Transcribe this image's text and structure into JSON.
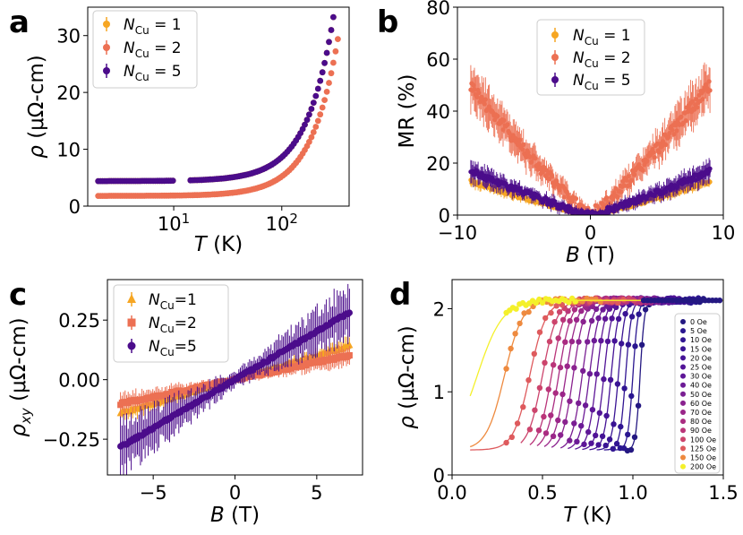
{
  "chart_data": [
    {
      "panel": "a",
      "type": "scatter",
      "xscale": "log",
      "xlim": [
        1.6,
        420
      ],
      "ylim": [
        0,
        35
      ],
      "xlabel": "T (K)",
      "ylabel": "ρ (μΩ-cm)",
      "xticks": [
        10,
        100
      ],
      "xtick_labels": [
        "10^1",
        "10^2"
      ],
      "yticks": [
        0,
        10,
        20,
        30
      ],
      "ytick_labels": [
        "0",
        "10",
        "20",
        "30"
      ],
      "legend": "upper-left",
      "series": [
        {
          "name": "N_Cu = 1",
          "color": "#f6a623",
          "residual": 4.4,
          "coef": 0.00133,
          "exp": 1.75,
          "tmax": 330
        },
        {
          "name": "N_Cu = 2",
          "color": "#ec7053",
          "residual": 1.8,
          "coef": 0.00108,
          "exp": 1.75,
          "tmax": 330
        },
        {
          "name": "N_Cu = 5",
          "color": "#4b0c8b",
          "residual": 4.4,
          "coef": 0.00133,
          "exp": 1.75,
          "tmax": 330
        }
      ]
    },
    {
      "panel": "b",
      "type": "scatter",
      "xlim": [
        -10,
        10
      ],
      "ylim": [
        0,
        80
      ],
      "xlabel": "B (T)",
      "ylabel": "MR (%)",
      "xticks": [
        -10,
        0,
        10
      ],
      "xtick_labels": [
        "−10",
        "0",
        "10"
      ],
      "yticks": [
        0,
        20,
        40,
        60,
        80
      ],
      "ytick_labels": [
        "0",
        "20",
        "40",
        "60",
        "80"
      ],
      "legend": "top-center",
      "series": [
        {
          "name": "N_Cu = 1",
          "color": "#f6a623",
          "mr_at_9T": 13,
          "err": 1.5
        },
        {
          "name": "N_Cu = 2",
          "color": "#ec7053",
          "mr_at_9T": 50,
          "err": 6
        },
        {
          "name": "N_Cu = 5",
          "color": "#4b0c8b",
          "mr_at_9T": 17,
          "err": 3
        }
      ]
    },
    {
      "panel": "c",
      "type": "scatter",
      "xlim": [
        -7.8,
        7.8
      ],
      "ylim": [
        -0.4,
        0.42
      ],
      "xlabel": "B (T)",
      "ylabel": "ρ_xy (μΩ-cm)",
      "xticks": [
        -5,
        0,
        5
      ],
      "xtick_labels": [
        "−5",
        "0",
        "5"
      ],
      "yticks": [
        -0.25,
        0,
        0.25
      ],
      "ytick_labels": [
        "−0.25",
        "0.00",
        "0.25"
      ],
      "legend": "upper-left",
      "series": [
        {
          "name": "N_Cu=1",
          "color": "#f6a623",
          "slope": 0.02,
          "err": 0.03,
          "marker": "triangle"
        },
        {
          "name": "N_Cu=2",
          "color": "#ec7053",
          "slope": 0.0145,
          "err": 0.035,
          "marker": "square"
        },
        {
          "name": "N_Cu=5",
          "color": "#4b0c8b",
          "slope": 0.0405,
          "err": 0.09,
          "marker": "circle"
        }
      ]
    },
    {
      "panel": "d",
      "type": "line",
      "xlim": [
        0,
        1.5
      ],
      "ylim": [
        0,
        2.35
      ],
      "xlabel": "T (K)",
      "ylabel": "ρ (μΩ-cm)",
      "xticks": [
        0,
        0.5,
        1.0,
        1.5
      ],
      "xtick_labels": [
        "0.0",
        "0.5",
        "1.0",
        "1.5"
      ],
      "yticks": [
        0,
        1,
        2
      ],
      "ytick_labels": [
        "0",
        "1",
        "2"
      ],
      "legend": "right",
      "normal_state": 2.1,
      "residual": 0.3,
      "series": [
        {
          "name": "0 Oe",
          "tc": 1.04,
          "width": 0.012,
          "color": "#241882"
        },
        {
          "name": "5 Oe",
          "tc": 1.0,
          "width": 0.014,
          "color": "#2a1690"
        },
        {
          "name": "10 Oe",
          "tc": 0.96,
          "width": 0.016,
          "color": "#311592"
        },
        {
          "name": "15 Oe",
          "tc": 0.92,
          "width": 0.018,
          "color": "#3a1494"
        },
        {
          "name": "20 Oe",
          "tc": 0.88,
          "width": 0.02,
          "color": "#451396"
        },
        {
          "name": "25 Oe",
          "tc": 0.84,
          "width": 0.022,
          "color": "#521497"
        },
        {
          "name": "30 Oe",
          "tc": 0.8,
          "width": 0.024,
          "color": "#5e1697"
        },
        {
          "name": "40 Oe",
          "tc": 0.76,
          "width": 0.026,
          "color": "#6c1a96"
        },
        {
          "name": "50 Oe",
          "tc": 0.72,
          "width": 0.028,
          "color": "#7a1f93"
        },
        {
          "name": "60 Oe",
          "tc": 0.67,
          "width": 0.03,
          "color": "#8a228f"
        },
        {
          "name": "70 Oe",
          "tc": 0.63,
          "width": 0.032,
          "color": "#9a2689"
        },
        {
          "name": "80 Oe",
          "tc": 0.59,
          "width": 0.034,
          "color": "#aa2c81"
        },
        {
          "name": "90 Oe",
          "tc": 0.55,
          "width": 0.036,
          "color": "#ba3579"
        },
        {
          "name": "100 Oe",
          "tc": 0.5,
          "width": 0.04,
          "color": "#cc446c"
        },
        {
          "name": "125 Oe",
          "tc": 0.43,
          "width": 0.045,
          "color": "#de5a5d"
        },
        {
          "name": "150 Oe",
          "tc": 0.29,
          "width": 0.05,
          "color": "#ee8a3f"
        },
        {
          "name": "200 Oe",
          "tc": 0.14,
          "width": 0.07,
          "color": "#f4f02a"
        }
      ]
    }
  ]
}
